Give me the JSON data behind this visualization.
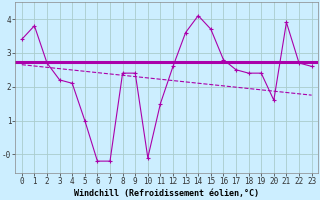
{
  "x_values": [
    0,
    1,
    2,
    3,
    4,
    5,
    6,
    7,
    8,
    9,
    10,
    11,
    12,
    13,
    14,
    15,
    16,
    17,
    18,
    19,
    20,
    21,
    22,
    23
  ],
  "y_main": [
    3.4,
    3.8,
    2.7,
    2.2,
    2.1,
    1.0,
    -0.2,
    -0.2,
    2.4,
    2.4,
    -0.1,
    1.5,
    2.6,
    3.6,
    4.1,
    3.7,
    2.8,
    2.5,
    2.4,
    2.4,
    1.6,
    3.9,
    2.7,
    2.6
  ],
  "y_trend_start": 2.65,
  "y_trend_end": 1.75,
  "y_horizontal": 2.72,
  "line_color": "#aa00aa",
  "bg_color": "#cceeff",
  "grid_color": "#aacccc",
  "xlabel": "Windchill (Refroidissement éolien,°C)",
  "xlim": [
    -0.5,
    23.5
  ],
  "ylim": [
    -0.55,
    4.5
  ],
  "yticks": [
    0,
    1,
    2,
    3,
    4
  ],
  "ytick_labels": [
    "-0",
    "1",
    "2",
    "3",
    "4"
  ],
  "tick_fontsize": 5.5,
  "label_fontsize": 6.0
}
